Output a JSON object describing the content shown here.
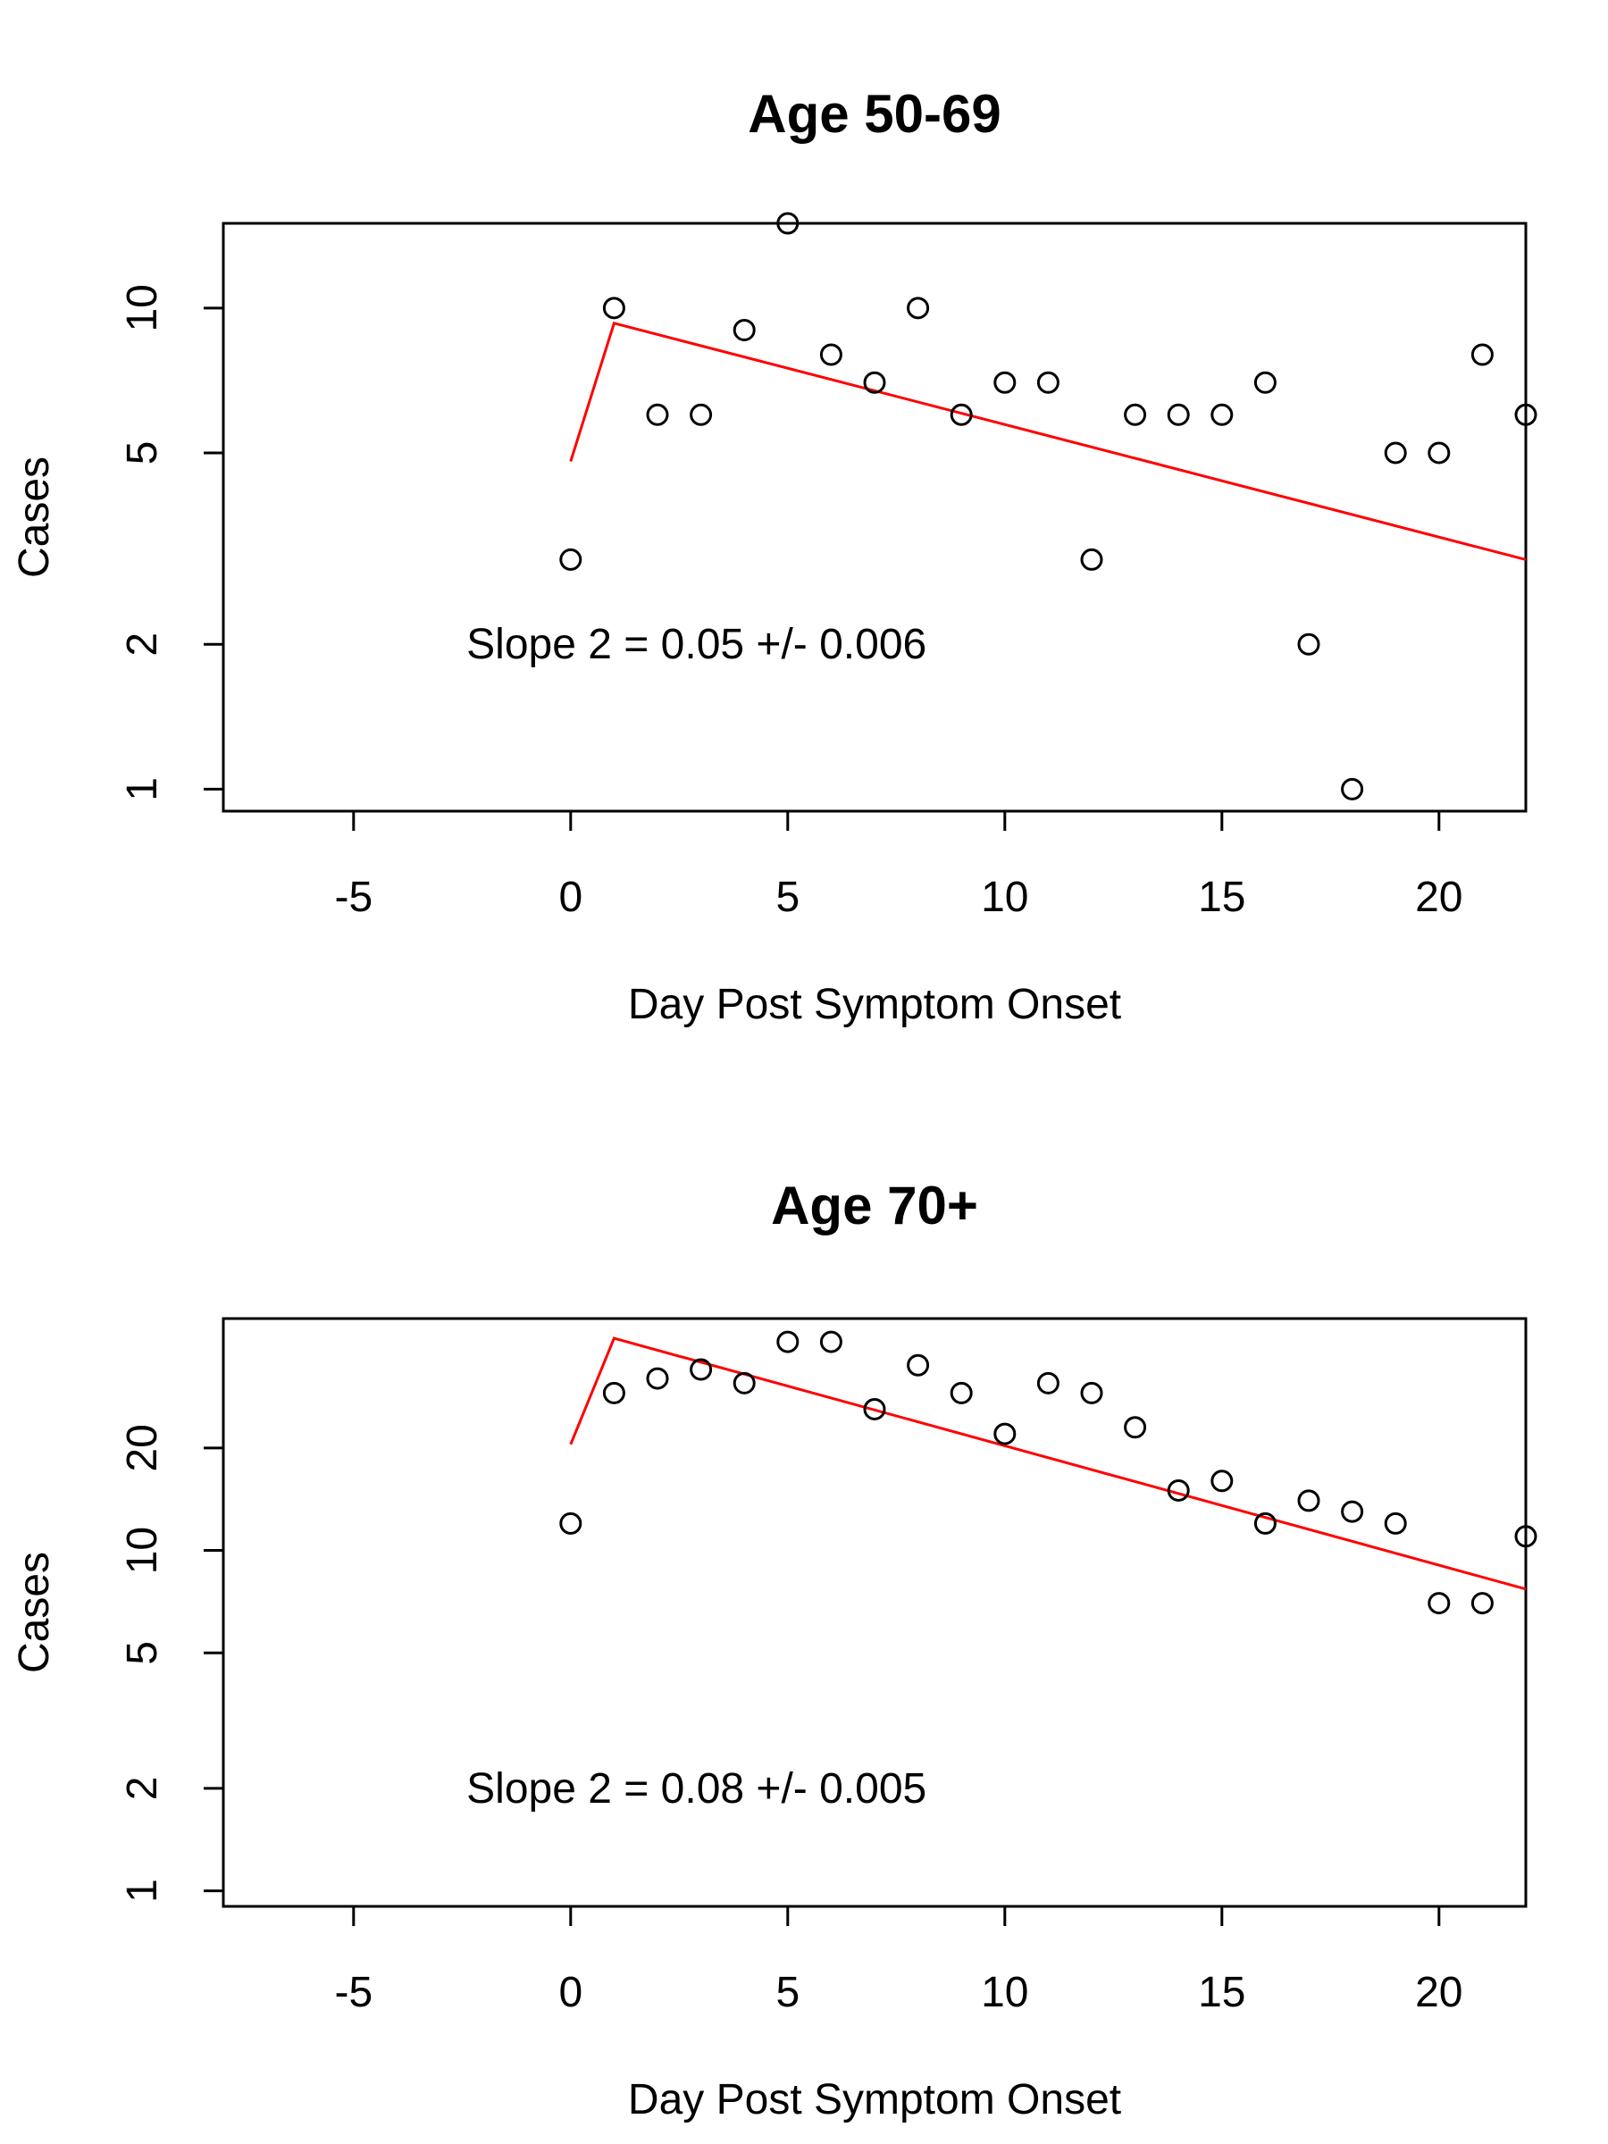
{
  "chart_data": [
    {
      "type": "scatter",
      "title": "Age 50-69",
      "xlabel": "Day Post Symptom Onset",
      "ylabel": "Cases",
      "y_scale": "log",
      "xlim": [
        -8,
        22
      ],
      "ylim": [
        0.9,
        15
      ],
      "x_ticks": [
        -5,
        0,
        5,
        10,
        15,
        20
      ],
      "y_ticks": [
        1,
        2,
        5,
        10
      ],
      "points": {
        "x": [
          0,
          1,
          2,
          3,
          4,
          5,
          6,
          7,
          8,
          9,
          10,
          11,
          12,
          13,
          14,
          15,
          16,
          17,
          18,
          19,
          20,
          21,
          22
        ],
        "y": [
          3,
          10,
          6,
          6,
          9,
          15,
          8,
          7,
          10,
          6,
          7,
          7,
          3,
          6,
          6,
          6,
          7,
          2,
          1,
          5,
          5,
          8,
          6
        ]
      },
      "fit_line": {
        "color": "#ff0000",
        "x": [
          0,
          1,
          22
        ],
        "y": [
          4.8,
          9.3,
          3.0
        ]
      },
      "annotation": {
        "text": "Slope 2 = 0.05 +/- 0.006",
        "x": -2.4,
        "y": 2
      }
    },
    {
      "type": "scatter",
      "title": "Age 70+",
      "xlabel": "Day Post Symptom Onset",
      "ylabel": "Cases",
      "y_scale": "log",
      "xlim": [
        -8,
        22
      ],
      "ylim": [
        0.9,
        48
      ],
      "x_ticks": [
        -5,
        0,
        5,
        10,
        15,
        20
      ],
      "y_ticks": [
        1,
        2,
        5,
        10,
        20
      ],
      "points": {
        "x": [
          0,
          1,
          2,
          3,
          4,
          5,
          6,
          7,
          8,
          9,
          10,
          11,
          12,
          13,
          14,
          15,
          16,
          17,
          18,
          19,
          20,
          21,
          22
        ],
        "y": [
          12,
          29,
          32,
          34,
          31,
          41,
          41,
          26,
          35,
          29,
          22,
          31,
          29,
          23,
          15,
          16,
          12,
          14,
          13,
          12,
          7,
          7,
          11
        ]
      },
      "fit_line": {
        "color": "#ff0000",
        "x": [
          0,
          1,
          22
        ],
        "y": [
          20.5,
          42.0,
          7.7
        ]
      },
      "annotation": {
        "text": "Slope 2 = 0.08 +/- 0.005",
        "x": -2.4,
        "y": 2
      }
    }
  ]
}
